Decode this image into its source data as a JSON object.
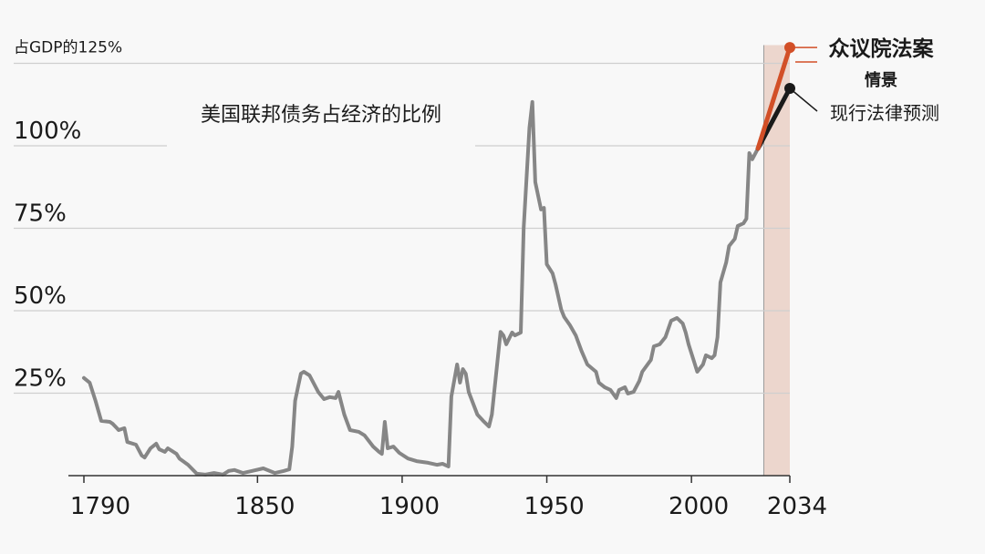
{
  "chart_data": {
    "type": "line",
    "title": "美国联邦债务占经济的比例",
    "xlim": [
      1790,
      2034
    ],
    "xticks": [
      1790,
      1850,
      1900,
      1950,
      2000,
      2034
    ],
    "ylim": [
      0,
      125
    ],
    "yticks": [
      {
        "value": 25,
        "label": "25%"
      },
      {
        "value": 50,
        "label": "50%"
      },
      {
        "value": 75,
        "label": "75%"
      },
      {
        "value": 100,
        "label": "100%"
      },
      {
        "value": 125,
        "label": "占GDP的125%"
      }
    ],
    "grid": true,
    "shade": [
      2025,
      2034
    ],
    "shade_color": "#ecd6cd",
    "series": [
      {
        "color": "#868686",
        "x": [
          1790,
          1792,
          1794,
          1796,
          1799,
          1800,
          1802,
          1804,
          1805,
          1808,
          1810,
          1811,
          1813,
          1815,
          1816,
          1818,
          1819,
          1822,
          1823,
          1826,
          1829,
          1832,
          1835,
          1838,
          1840,
          1842,
          1845,
          1848,
          1852,
          1856,
          1859,
          1861,
          1862,
          1863,
          1864,
          1865,
          1866,
          1868,
          1871,
          1873,
          1875,
          1877,
          1878,
          1880,
          1882,
          1885,
          1887,
          1890,
          1892,
          1893,
          1894,
          1895,
          1897,
          1899,
          1902,
          1905,
          1909,
          1912,
          1914,
          1916,
          1917,
          1919,
          1920,
          1921,
          1922,
          1923,
          1926,
          1928,
          1930,
          1931,
          1933,
          1934,
          1935,
          1936,
          1938,
          1939,
          1941,
          1942,
          1944,
          1945,
          1946,
          1948,
          1949,
          1950,
          1952,
          1953,
          1955,
          1956,
          1958,
          1960,
          1962,
          1964,
          1967,
          1968,
          1970,
          1972,
          1974,
          1975,
          1977,
          1978,
          1980,
          1982,
          1983,
          1986,
          1987,
          1989,
          1991,
          1993,
          1995,
          1997,
          1998,
          1999,
          2001,
          2002,
          2004,
          2005,
          2007,
          2008,
          2009,
          2010,
          2012,
          2013,
          2015,
          2016,
          2018,
          2019,
          2020,
          2021,
          2023
        ],
        "values": [
          29.6,
          28.2,
          22.7,
          16.6,
          16.3,
          15.7,
          13.8,
          14.4,
          10.2,
          9.4,
          6.1,
          5.5,
          8.3,
          9.7,
          8.0,
          7.2,
          8.3,
          6.6,
          5.2,
          3.3,
          0.6,
          0.3,
          0.8,
          0.3,
          1.4,
          1.7,
          0.8,
          1.4,
          2.2,
          0.8,
          1.4,
          1.9,
          8.8,
          22.7,
          26.8,
          30.9,
          31.5,
          30.4,
          25.4,
          23.2,
          23.8,
          23.5,
          25.4,
          18.5,
          13.8,
          13.3,
          12.2,
          8.8,
          7.2,
          6.6,
          16.3,
          8.3,
          8.8,
          6.9,
          5.2,
          4.4,
          3.9,
          3.3,
          3.6,
          2.8,
          24.0,
          33.7,
          28.2,
          32.3,
          30.9,
          25.4,
          18.5,
          16.6,
          14.9,
          18.5,
          35.1,
          43.6,
          42.5,
          39.8,
          43.4,
          42.5,
          43.4,
          75.1,
          105.5,
          113.3,
          89.0,
          80.7,
          81.2,
          64.1,
          61.3,
          58.0,
          50.3,
          48.1,
          45.6,
          42.5,
          37.8,
          33.7,
          31.5,
          28.2,
          26.8,
          26.0,
          23.5,
          26.0,
          26.8,
          24.9,
          25.4,
          28.7,
          31.5,
          35.1,
          39.2,
          39.8,
          42.0,
          47.0,
          47.8,
          46.1,
          43.4,
          39.8,
          34.3,
          31.5,
          33.7,
          36.5,
          35.6,
          36.5,
          42.0,
          58.6,
          64.6,
          69.6,
          71.8,
          75.7,
          76.5,
          77.9,
          97.8,
          95.9,
          99.2
        ]
      },
      {
        "name": "现行法律预测",
        "color": "#1a1a1a",
        "x": [
          2023,
          2034
        ],
        "values": [
          99.2,
          117.4
        ]
      },
      {
        "name": "众议院法案",
        "color": "#d24f27",
        "x": [
          2023,
          2034
        ],
        "values": [
          99.2,
          129.8
        ]
      }
    ],
    "annotations": [
      "情景"
    ]
  }
}
